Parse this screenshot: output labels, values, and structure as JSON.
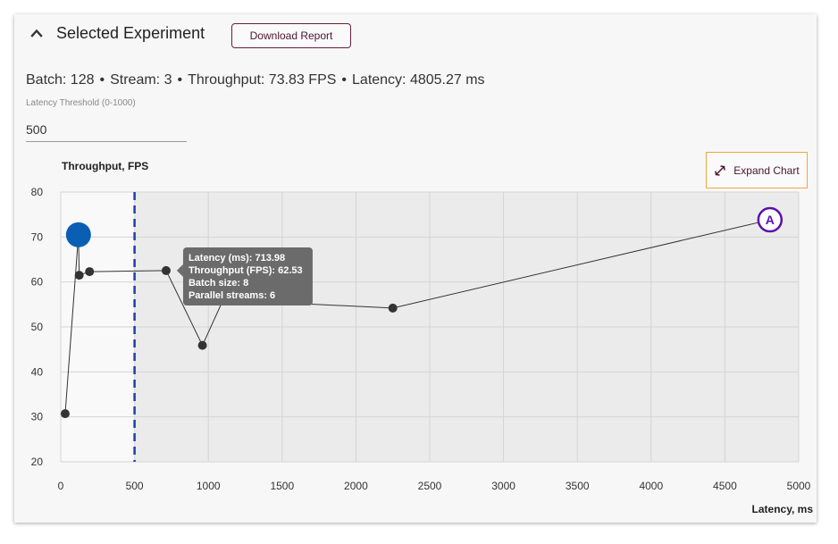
{
  "panel": {
    "title": "Selected Experiment",
    "download_label": "Download Report",
    "expand_label": "Expand Chart",
    "collapse_icon": "chevron-up-icon",
    "expand_icon": "expand-diagonal-icon"
  },
  "summary": {
    "batch": "Batch: 128",
    "stream": "Stream: 3",
    "throughput": "Throughput: 73.83 FPS",
    "latency": "Latency: 4805.27 ms",
    "separator": "•"
  },
  "threshold": {
    "label": "Latency Threshold (0-1000)",
    "value": "500"
  },
  "tooltip": {
    "lines": [
      "Latency (ms): 713.98",
      "Throughput (FPS): 62.53",
      "Batch size: 8",
      "Parallel streams: 6"
    ]
  },
  "chart_data": {
    "type": "scatter",
    "xlabel": "Latency, ms",
    "ylabel": "Throughput, FPS",
    "xlim": [
      0,
      5000
    ],
    "ylim": [
      20,
      80
    ],
    "x_ticks": [
      0,
      500,
      1000,
      1500,
      2000,
      2500,
      3000,
      3500,
      4000,
      4500,
      5000
    ],
    "y_ticks": [
      20,
      30,
      40,
      50,
      60,
      70,
      80
    ],
    "grid": true,
    "threshold_line": 500,
    "colors": {
      "line": "#333333",
      "point": "#333333",
      "highlight": "#0a5fb4",
      "threshold": "#1f3fa8",
      "selected_marker": "#5a10b0",
      "shaded_region": "#ebebeb",
      "tooltip_bg": "#6b6b6b"
    },
    "points": [
      {
        "x": 30,
        "y": 30.7
      },
      {
        "x": 120,
        "y": 70.5
      },
      {
        "x": 125,
        "y": 61.5
      },
      {
        "x": 195,
        "y": 62.3
      },
      {
        "x": 713.98,
        "y": 62.53
      },
      {
        "x": 960,
        "y": 45.9
      },
      {
        "x": 1100,
        "y": 56
      },
      {
        "x": 2250,
        "y": 54.2
      },
      {
        "x": 4805.27,
        "y": 73.83
      }
    ],
    "highlighted_point": {
      "x": 120,
      "y": 70.5
    },
    "hovered_point": {
      "x": 713.98,
      "y": 62.53
    },
    "selected_point": {
      "x": 4805.27,
      "y": 73.83,
      "label": "A"
    }
  }
}
